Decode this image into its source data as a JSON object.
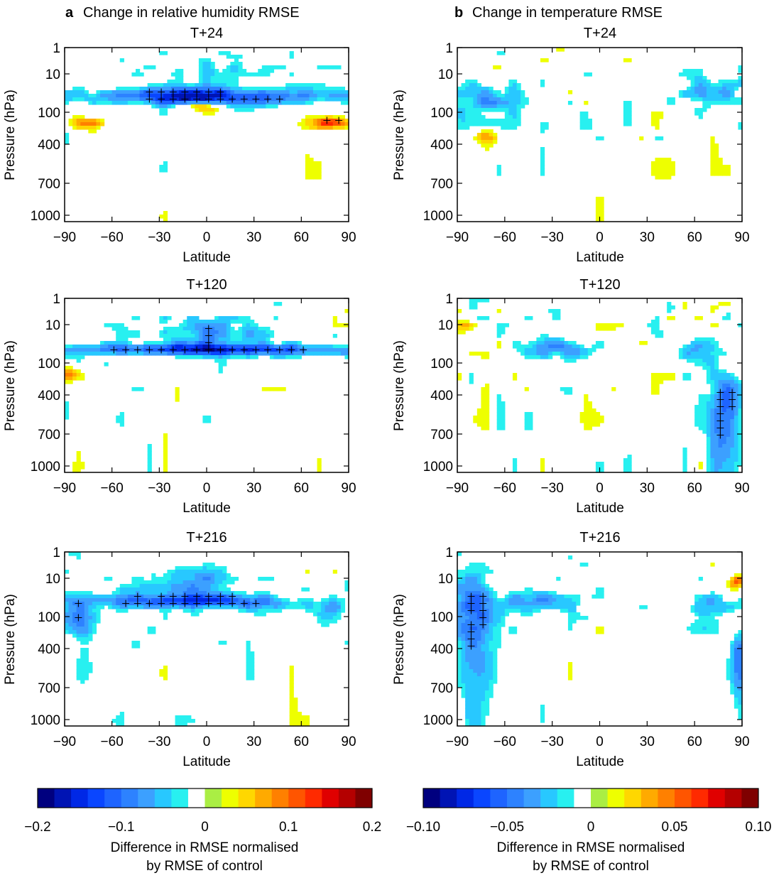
{
  "chart_data": [
    {
      "type": "heatmap",
      "panel": "a",
      "column_title": "Change in relative humidity RMSE",
      "lead_times": [
        "T+24",
        "T+120",
        "T+216"
      ],
      "xlabel": "Latitude",
      "ylabel": "Pressure (hPa)",
      "x_ticks": [
        -90,
        -60,
        -30,
        0,
        30,
        60,
        90
      ],
      "x_tick_labels": [
        "−90",
        "−60",
        "−30",
        "0",
        "30",
        "60",
        "90"
      ],
      "y_ticks": [
        1,
        10,
        100,
        400,
        700,
        1000
      ],
      "y_tick_labels": [
        "1",
        "10",
        "100",
        "400",
        "700",
        "1000"
      ],
      "xlim": [
        -90,
        90
      ],
      "ylim": [
        1,
        1000
      ],
      "colorbar": {
        "min": -0.2,
        "max": 0.2,
        "tick_values": [
          -0.2,
          -0.1,
          0,
          0.1,
          0.2
        ],
        "tick_labels": [
          "−0.2",
          "−0.1",
          "0",
          "0.1",
          "0.2"
        ],
        "label_line1": "Difference in RMSE normalised",
        "label_line2": "by RMSE of control"
      }
    },
    {
      "type": "heatmap",
      "panel": "b",
      "column_title": "Change in temperature RMSE",
      "lead_times": [
        "T+24",
        "T+120",
        "T+216"
      ],
      "xlabel": "Latitude",
      "ylabel": "Pressure (hPa)",
      "x_ticks": [
        -90,
        -60,
        -30,
        0,
        30,
        60,
        90
      ],
      "x_tick_labels": [
        "−90",
        "−60",
        "−30",
        "0",
        "30",
        "60",
        "90"
      ],
      "y_ticks": [
        1,
        10,
        100,
        400,
        700,
        1000
      ],
      "y_tick_labels": [
        "1",
        "10",
        "100",
        "400",
        "700",
        "1000"
      ],
      "xlim": [
        -90,
        90
      ],
      "ylim": [
        1,
        1000
      ],
      "colorbar": {
        "min": -0.1,
        "max": 0.1,
        "tick_values": [
          -0.1,
          -0.05,
          0,
          0.05,
          0.1
        ],
        "tick_labels": [
          "−0.10",
          "−0.05",
          "0",
          "0.05",
          "0.10"
        ],
        "label_line1": "Difference in RMSE normalised",
        "label_line2": "by RMSE of control"
      }
    }
  ],
  "palette": [
    "#00007f",
    "#0014b4",
    "#0028e6",
    "#0a46ff",
    "#1e64ff",
    "#2d82ff",
    "#3ca0ff",
    "#28c8ff",
    "#28f0f0",
    "#ffffff",
    "#aaee44",
    "#eeff00",
    "#ffd700",
    "#ffaa00",
    "#ff8000",
    "#ff5500",
    "#ff2a00",
    "#e00000",
    "#b40000",
    "#7f0000"
  ]
}
